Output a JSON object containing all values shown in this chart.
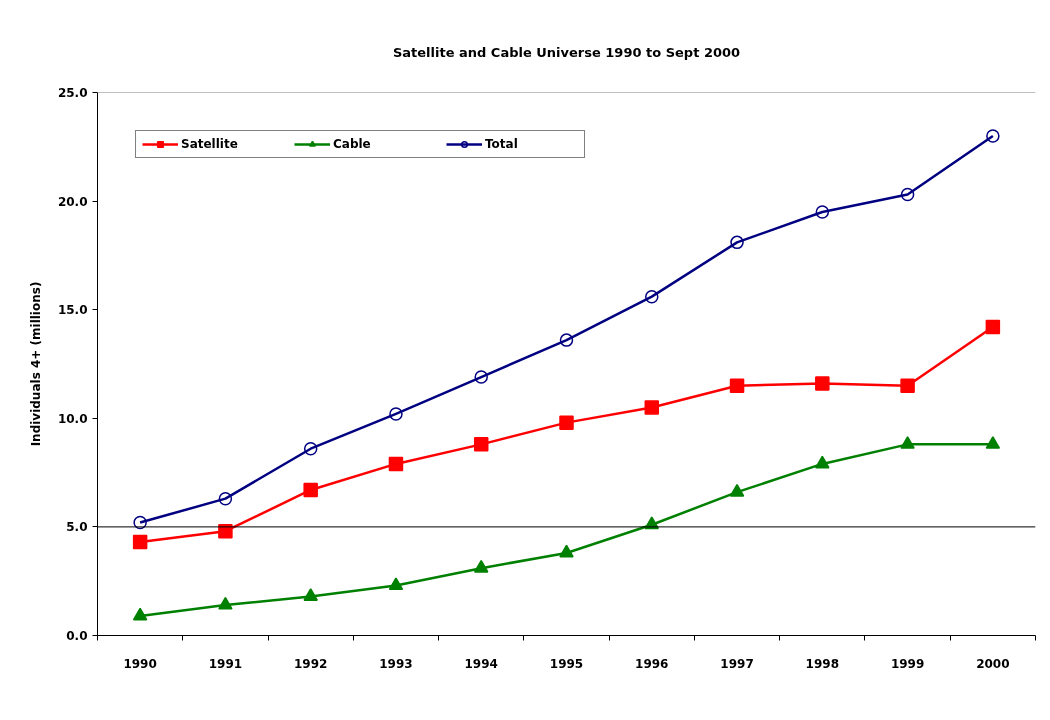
{
  "chart_data": {
    "type": "line",
    "title": "Satellite and Cable Universe 1990 to Sept 2000",
    "ylabel": "Individuals 4+ (millions)",
    "categories": [
      "1990",
      "1991",
      "1992",
      "1993",
      "1994",
      "1995",
      "1996",
      "1997",
      "1998",
      "1999",
      "2000"
    ],
    "series": [
      {
        "name": "Satellite",
        "color": "#ff0000",
        "marker": "square",
        "values": [
          4.3,
          4.8,
          6.7,
          7.9,
          8.8,
          9.8,
          10.5,
          11.5,
          11.6,
          11.5,
          14.2
        ]
      },
      {
        "name": "Cable",
        "color": "#008000",
        "marker": "triangle",
        "values": [
          0.9,
          1.4,
          1.8,
          2.3,
          3.1,
          3.8,
          5.1,
          6.6,
          7.9,
          8.8,
          8.8
        ]
      },
      {
        "name": "Total",
        "color": "#000080",
        "marker": "circle",
        "values": [
          5.2,
          6.3,
          8.6,
          10.2,
          11.9,
          13.6,
          15.6,
          18.1,
          19.5,
          20.3,
          23.0
        ]
      }
    ],
    "ylim": [
      0,
      25
    ],
    "yticks": [
      {
        "value": 0,
        "label": "0.0"
      },
      {
        "value": 5,
        "label": "5.0"
      },
      {
        "value": 10,
        "label": "10.0"
      },
      {
        "value": 15,
        "label": "15.0"
      },
      {
        "value": 20,
        "label": "20.0"
      },
      {
        "value": 25,
        "label": "25.0"
      }
    ],
    "ref_lines": [
      {
        "axis": "y",
        "value": 5,
        "color": "#000000"
      },
      {
        "axis": "y",
        "value": 25,
        "color": "#808080"
      }
    ],
    "legend": "top left"
  }
}
